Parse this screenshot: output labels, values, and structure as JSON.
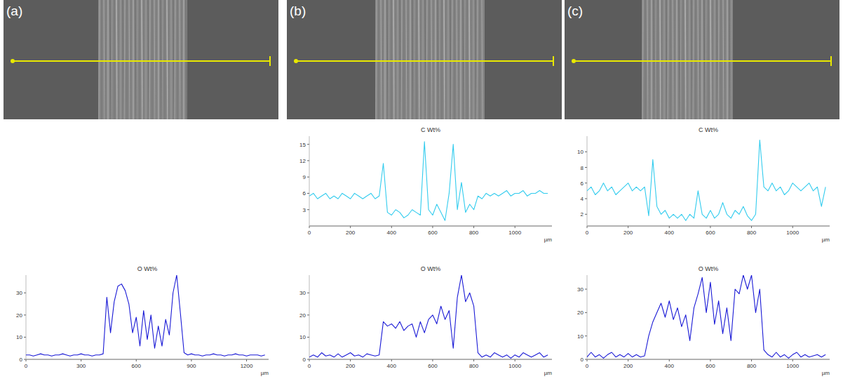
{
  "panels": [
    "(a)",
    "(b)",
    "(c)"
  ],
  "chart_data": [
    {
      "type": "line",
      "title": "O Wt%",
      "x_label": "µm",
      "color": "#1a1ad6",
      "x": [
        0,
        20,
        40,
        60,
        80,
        100,
        120,
        140,
        160,
        180,
        200,
        220,
        240,
        260,
        280,
        300,
        320,
        340,
        360,
        380,
        400,
        420,
        440,
        460,
        480,
        500,
        520,
        540,
        560,
        580,
        600,
        620,
        640,
        660,
        680,
        700,
        720,
        740,
        760,
        780,
        800,
        820,
        840,
        860,
        880,
        900,
        920,
        940,
        960,
        980,
        1000,
        1020,
        1040,
        1060,
        1080,
        1100,
        1120,
        1140,
        1160,
        1180,
        1200,
        1220,
        1240,
        1260,
        1280,
        1300
      ],
      "values": [
        2,
        2,
        1.5,
        2,
        2.5,
        2,
        2,
        1.5,
        2,
        2,
        2.5,
        2,
        1.5,
        2,
        2,
        2.5,
        2,
        2,
        1.5,
        2,
        2,
        2.5,
        28,
        12,
        26,
        33,
        34,
        31,
        25,
        12,
        19,
        6,
        22,
        9,
        20,
        5,
        15,
        6,
        18,
        11,
        30,
        38,
        21,
        3,
        2,
        2.5,
        2,
        2,
        1.5,
        2,
        2,
        2.5,
        2,
        2,
        1.5,
        2,
        2,
        2.5,
        2,
        2,
        1.5,
        2,
        2,
        2,
        1.5,
        2
      ],
      "xlim": [
        0,
        1320
      ],
      "xticks": [
        0,
        300,
        600,
        900,
        1200
      ],
      "ylim": [
        0,
        38
      ],
      "yticks": [
        0,
        10,
        20,
        30
      ]
    },
    {
      "type": "line",
      "title": "C Wt%",
      "x_label": "µm",
      "color": "#33ccee",
      "x": [
        0,
        20,
        40,
        60,
        80,
        100,
        120,
        140,
        160,
        180,
        200,
        220,
        240,
        260,
        280,
        300,
        320,
        340,
        360,
        380,
        400,
        420,
        440,
        460,
        480,
        500,
        520,
        540,
        560,
        580,
        600,
        620,
        640,
        660,
        680,
        700,
        720,
        740,
        760,
        780,
        800,
        820,
        840,
        860,
        880,
        900,
        920,
        940,
        960,
        980,
        1000,
        1020,
        1040,
        1060,
        1080,
        1100,
        1120,
        1140,
        1160
      ],
      "values": [
        5.5,
        6,
        5,
        5.5,
        6,
        5,
        5.5,
        5,
        6,
        5.5,
        5,
        6,
        5.5,
        5,
        5.5,
        6,
        5,
        5.5,
        11.5,
        2.5,
        2,
        3,
        2.5,
        1.5,
        2,
        3,
        2.5,
        2,
        15.5,
        3,
        2,
        4,
        2.5,
        1,
        6,
        15,
        3,
        8,
        2.5,
        4,
        3,
        5.5,
        5,
        6,
        5.5,
        6,
        5.5,
        6,
        6.5,
        5.5,
        6,
        6,
        6.5,
        5.5,
        6,
        6,
        6.5,
        6,
        6
      ],
      "xlim": [
        0,
        1180
      ],
      "xticks": [
        0,
        200,
        400,
        600,
        800,
        1000
      ],
      "ylim": [
        0,
        16.5
      ],
      "yticks": [
        3,
        6,
        9,
        12,
        15
      ]
    },
    {
      "type": "line",
      "title": "O Wt%",
      "x_label": "µm",
      "color": "#1a1ad6",
      "x": [
        0,
        20,
        40,
        60,
        80,
        100,
        120,
        140,
        160,
        180,
        200,
        220,
        240,
        260,
        280,
        300,
        320,
        340,
        360,
        380,
        400,
        420,
        440,
        460,
        480,
        500,
        520,
        540,
        560,
        580,
        600,
        620,
        640,
        660,
        680,
        700,
        720,
        740,
        760,
        780,
        800,
        820,
        840,
        860,
        880,
        900,
        920,
        940,
        960,
        980,
        1000,
        1020,
        1040,
        1060,
        1080,
        1100,
        1120,
        1140,
        1160
      ],
      "values": [
        1,
        2,
        1,
        3,
        1.5,
        2,
        1,
        2.5,
        1,
        2,
        3,
        1.5,
        2,
        1,
        2.5,
        2,
        1.5,
        2,
        17,
        15,
        16,
        14,
        17,
        13,
        15,
        16,
        10,
        17,
        12,
        18,
        20,
        16,
        24,
        18,
        22,
        5,
        28,
        38,
        26,
        30,
        24,
        3,
        1,
        2,
        1,
        3,
        2,
        1,
        2,
        0.5,
        2,
        1,
        3,
        2,
        1,
        2,
        3,
        1,
        2
      ],
      "xlim": [
        0,
        1180
      ],
      "xticks": [
        0,
        200,
        400,
        600,
        800,
        1000
      ],
      "ylim": [
        0,
        38
      ],
      "yticks": [
        0,
        10,
        20,
        30
      ]
    },
    {
      "type": "line",
      "title": "C Wt%",
      "x_label": "µm",
      "color": "#33ccee",
      "x": [
        0,
        20,
        40,
        60,
        80,
        100,
        120,
        140,
        160,
        180,
        200,
        220,
        240,
        260,
        280,
        300,
        320,
        340,
        360,
        380,
        400,
        420,
        440,
        460,
        480,
        500,
        520,
        540,
        560,
        580,
        600,
        620,
        640,
        660,
        680,
        700,
        720,
        740,
        760,
        780,
        800,
        820,
        840,
        860,
        880,
        900,
        920,
        940,
        960,
        980,
        1000,
        1020,
        1040,
        1060,
        1080,
        1100,
        1120,
        1140,
        1160
      ],
      "values": [
        5,
        5.5,
        4.5,
        5,
        6,
        5,
        5.5,
        4.5,
        5,
        5.5,
        6,
        5,
        5.5,
        5,
        5.5,
        1.8,
        9,
        3,
        2,
        2.5,
        1.5,
        2,
        1.5,
        2,
        1.2,
        2,
        1.5,
        5,
        2,
        1.5,
        2.5,
        1.5,
        2,
        3.5,
        2,
        1.5,
        2.5,
        2,
        3,
        1.8,
        1.2,
        2,
        11.5,
        5.5,
        5,
        6,
        5,
        5.5,
        4.5,
        5,
        6,
        5.5,
        5,
        5.5,
        6,
        5,
        5.5,
        3,
        5.5
      ],
      "xlim": [
        0,
        1180
      ],
      "xticks": [
        0,
        200,
        400,
        600,
        800,
        1000
      ],
      "ylim": [
        0.5,
        12
      ],
      "yticks": [
        2,
        4,
        6,
        8,
        10
      ]
    },
    {
      "type": "line",
      "title": "O Wt%",
      "x_label": "µm",
      "color": "#1a1ad6",
      "x": [
        0,
        20,
        40,
        60,
        80,
        100,
        120,
        140,
        160,
        180,
        200,
        220,
        240,
        260,
        280,
        300,
        320,
        340,
        360,
        380,
        400,
        420,
        440,
        460,
        480,
        500,
        520,
        540,
        560,
        580,
        600,
        620,
        640,
        660,
        680,
        700,
        720,
        740,
        760,
        780,
        800,
        820,
        840,
        860,
        880,
        900,
        920,
        940,
        960,
        980,
        1000,
        1020,
        1040,
        1060,
        1080,
        1100,
        1120,
        1140,
        1160
      ],
      "values": [
        1,
        3,
        1,
        2,
        0.5,
        2,
        3,
        1,
        2,
        1,
        2.5,
        1,
        2,
        1,
        1.5,
        10,
        16,
        20,
        24,
        18,
        25,
        17,
        22,
        14,
        19,
        8,
        22,
        28,
        35,
        20,
        33,
        15,
        25,
        11,
        22,
        8,
        30,
        28,
        36,
        30,
        36,
        20,
        30,
        4,
        2,
        1,
        3,
        1,
        2,
        0.5,
        2,
        3,
        1,
        2,
        1,
        1.5,
        2,
        1,
        2
      ],
      "xlim": [
        0,
        1180
      ],
      "xticks": [
        0,
        200,
        400,
        600,
        800,
        1000
      ],
      "ylim": [
        0,
        36
      ],
      "yticks": [
        0,
        10,
        20,
        30
      ]
    }
  ]
}
